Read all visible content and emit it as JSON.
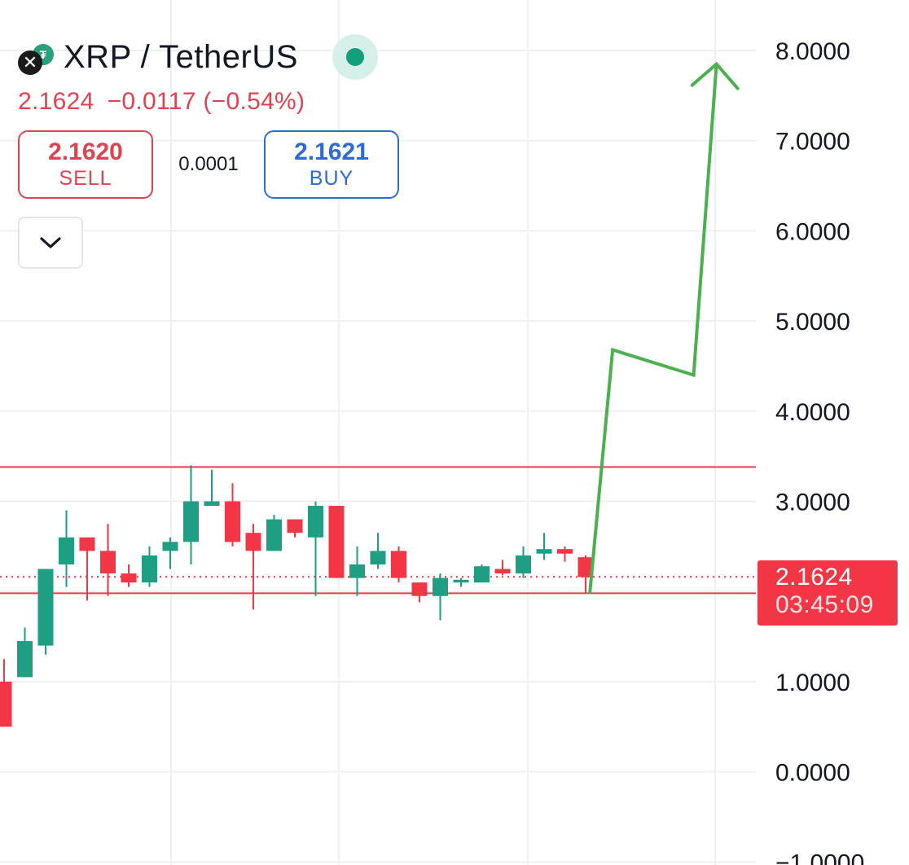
{
  "header": {
    "symbol": "XRP / TetherUS",
    "last_price": "2.1624",
    "change": "−0.0117",
    "change_pct": "(−0.54%)",
    "sell_price": "2.1620",
    "sell_label": "SELL",
    "spread": "0.0001",
    "buy_price": "2.1621",
    "buy_label": "BUY"
  },
  "price_label": {
    "price": "2.1624",
    "countdown": "03:45:09"
  },
  "colors": {
    "up": "#1e9e83",
    "down": "#f23645",
    "projection": "#4caf50",
    "grid": "#eef0f3",
    "level_lines": "#e0434f"
  },
  "icons": [
    "xrp-logo-icon",
    "tether-logo-icon",
    "live-status-icon",
    "chevron-down-icon"
  ],
  "chart_data": {
    "type": "candlestick",
    "y_axis": {
      "ticks": [
        "8.0000",
        "7.0000",
        "6.0000",
        "5.0000",
        "4.0000",
        "3.0000",
        "1.0000",
        "0.0000",
        "−1.0000"
      ],
      "range": [
        -1.0,
        8.0
      ],
      "position": "right"
    },
    "grid": true,
    "candles": [
      {
        "o": 1.0,
        "h": 1.25,
        "l": 0.5,
        "c": 0.5
      },
      {
        "o": 1.05,
        "h": 1.6,
        "l": 1.05,
        "c": 1.45
      },
      {
        "o": 1.4,
        "h": 2.25,
        "l": 1.3,
        "c": 2.25
      },
      {
        "o": 2.3,
        "h": 2.9,
        "l": 2.05,
        "c": 2.6
      },
      {
        "o": 2.6,
        "h": 2.6,
        "l": 1.9,
        "c": 2.45
      },
      {
        "o": 2.45,
        "h": 2.75,
        "l": 1.95,
        "c": 2.2
      },
      {
        "o": 2.2,
        "h": 2.3,
        "l": 2.05,
        "c": 2.1
      },
      {
        "o": 2.1,
        "h": 2.5,
        "l": 2.05,
        "c": 2.4
      },
      {
        "o": 2.45,
        "h": 2.6,
        "l": 2.25,
        "c": 2.55
      },
      {
        "o": 2.55,
        "h": 3.4,
        "l": 2.3,
        "c": 3.0
      },
      {
        "o": 2.95,
        "h": 3.35,
        "l": 2.95,
        "c": 3.0
      },
      {
        "o": 3.0,
        "h": 3.2,
        "l": 2.5,
        "c": 2.55
      },
      {
        "o": 2.65,
        "h": 2.75,
        "l": 1.8,
        "c": 2.45
      },
      {
        "o": 2.45,
        "h": 2.85,
        "l": 2.45,
        "c": 2.8
      },
      {
        "o": 2.8,
        "h": 2.8,
        "l": 2.6,
        "c": 2.65
      },
      {
        "o": 2.6,
        "h": 3.0,
        "l": 1.95,
        "c": 2.95
      },
      {
        "o": 2.95,
        "h": 2.95,
        "l": 2.15,
        "c": 2.15
      },
      {
        "o": 2.15,
        "h": 2.5,
        "l": 1.95,
        "c": 2.3
      },
      {
        "o": 2.3,
        "h": 2.65,
        "l": 2.25,
        "c": 2.45
      },
      {
        "o": 2.45,
        "h": 2.5,
        "l": 2.1,
        "c": 2.15
      },
      {
        "o": 2.1,
        "h": 2.1,
        "l": 1.88,
        "c": 1.95
      },
      {
        "o": 1.95,
        "h": 2.2,
        "l": 1.68,
        "c": 2.15
      },
      {
        "o": 2.1,
        "h": 2.15,
        "l": 2.05,
        "c": 2.13
      },
      {
        "o": 2.1,
        "h": 2.3,
        "l": 2.1,
        "c": 2.28
      },
      {
        "o": 2.25,
        "h": 2.35,
        "l": 2.18,
        "c": 2.2
      },
      {
        "o": 2.2,
        "h": 2.5,
        "l": 2.15,
        "c": 2.4
      },
      {
        "o": 2.42,
        "h": 2.65,
        "l": 2.35,
        "c": 2.47
      },
      {
        "o": 2.47,
        "h": 2.5,
        "l": 2.33,
        "c": 2.42
      },
      {
        "o": 2.38,
        "h": 2.4,
        "l": 1.98,
        "c": 2.16
      }
    ],
    "horizontal_lines": [
      3.38,
      1.98
    ],
    "last_price_line": 2.1624,
    "projection_path": [
      {
        "i": 28.2,
        "v": 1.98
      },
      {
        "i": 29.3,
        "v": 4.68
      },
      {
        "i": 33.2,
        "v": 4.4
      },
      {
        "i": 34.3,
        "v": 7.85
      }
    ]
  }
}
